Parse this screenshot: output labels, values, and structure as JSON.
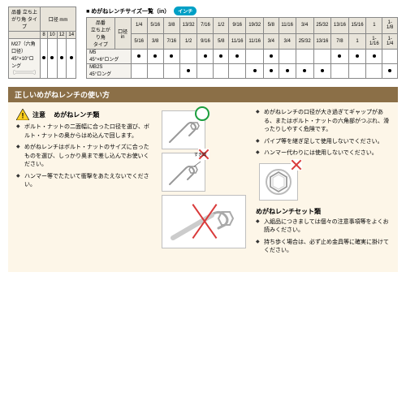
{
  "colors": {
    "sectionBar": "#8b6f47",
    "usageBg": "#fdf6e8",
    "badge": "#00a0c6",
    "ok": "#1a9e3e",
    "ng": "#d93a3a"
  },
  "tableMM": {
    "headTop": "口径\nmm",
    "headSide": "品番\n立ち上がり角\nタイプ",
    "cols": [
      "8",
      "10",
      "12",
      "14"
    ],
    "row": {
      "name": "M27（六角口径）\n45°×10°ロング",
      "img": "wrench",
      "marks": [
        1,
        1,
        1,
        1
      ]
    }
  },
  "tableIN": {
    "title": "■ めがねレンチサイズ一覧（in）",
    "badge": "インチ",
    "headTop": "口径\nin",
    "headSide": "品番\n立ち上がり角\nタイプ",
    "colsTop": [
      "1/4",
      "5/16",
      "3/8",
      "13/32",
      "7/16",
      "1/2",
      "9/16",
      "19/32",
      "5/8",
      "11/16",
      "3/4",
      "25/32",
      "13/16",
      "15/16",
      "1",
      "1-1/8"
    ],
    "colsBot": [
      "5/16",
      "3/8",
      "7/16",
      "1/2",
      "9/16",
      "5/8",
      "11/16",
      "11/16",
      "3/4",
      "3/4",
      "25/32",
      "13/16",
      "7/8",
      "1",
      "1-1/16",
      "1-1/4"
    ],
    "rows": [
      {
        "name": "M5\n45°×6°ロング",
        "marks": [
          1,
          1,
          1,
          0,
          1,
          1,
          1,
          0,
          1,
          0,
          0,
          0,
          1,
          1,
          1,
          0
        ]
      },
      {
        "name": "MB2S\n45°ロング",
        "marks": [
          0,
          0,
          0,
          1,
          0,
          0,
          0,
          1,
          1,
          1,
          1,
          1,
          0,
          0,
          0,
          1
        ]
      }
    ]
  },
  "section": "正しいめがねレンチの使い方",
  "warnLabel": "注意",
  "wrenchHead": "めがねレンチ類",
  "leftBullets": [
    "ボルト・ナットの二面幅に合った口径を選び、ボルト・ナットの奥からはめ込んで回します。",
    "めがねレンチはボルト・ナットのサイズに合ったものを選び、しっかり奥まで差し込んでお使いください。",
    "ハンマー等でたたいて衝撃をあたえないでください。"
  ],
  "rightBullets": [
    "めがねレンチの口径が大き過ぎてギャップがある、またはボルト・ナットの六角部がつぶれ、滑ったりしやすく危険です。",
    "パイプ等を継ぎ足して使用しないでください。",
    "ハンマー代わりには使用しないでください。"
  ],
  "setHead": "めがねレンチセット類",
  "setBullets": [
    "入組品につきましては個々の注意事項等をよくお読みください。",
    "持ち歩く場合は、必ず止め金具等に確実に掛けてください。"
  ],
  "gap": "すき間"
}
